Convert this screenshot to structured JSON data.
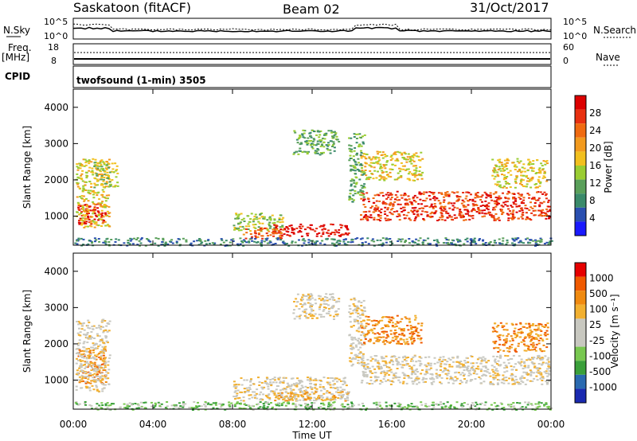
{
  "header": {
    "title": "Saskatoon (fitACF)",
    "beam": "Beam 02",
    "date": "31/Oct/2017"
  },
  "status_panels": {
    "nsky_label": "N.Sky",
    "nsky_ticks": [
      "10^5",
      "10^0"
    ],
    "nsearch_label": "N.Search",
    "nsearch_ticks": [
      "10^5",
      "10^0"
    ],
    "freq_label_1": "Freq.",
    "freq_label_2": "[MHz]",
    "freq_ticks": [
      "18",
      "8"
    ],
    "nave_label": "Nave",
    "nave_ticks": [
      "60",
      "0"
    ],
    "cpid_label": "CPID",
    "cpid_text": "twofsound (1-min) 3505"
  },
  "colors": {
    "power_scale": [
      "#1a1aff",
      "#2a4fb0",
      "#3a8a6a",
      "#5aa05a",
      "#9acd32",
      "#f2c01e",
      "#f29a1e",
      "#f06a10",
      "#e83010",
      "#dc0000"
    ],
    "velocity_scale": [
      "#e60000",
      "#f05a00",
      "#f08a10",
      "#f2b030",
      "#c8c8c0",
      "#c8c8c0",
      "#78c850",
      "#3aa03a",
      "#2a6ab0",
      "#1a2ab0"
    ]
  },
  "chart_data": [
    {
      "type": "heatmap",
      "name": "power",
      "ylabel": "Slant Range [km]",
      "yticks": [
        "1000",
        "2000",
        "3000",
        "4000"
      ],
      "ylim": [
        200,
        4500
      ],
      "xlim": [
        0,
        24
      ],
      "colorbar_label": "Power [dB]",
      "colorbar_ticks": [
        "28",
        "24",
        "20",
        "16",
        "12",
        "8",
        "4"
      ],
      "features": [
        {
          "t0": 0.2,
          "t1": 1.6,
          "r0": 800,
          "r1": 1400,
          "level": 9
        },
        {
          "t0": 0.1,
          "t1": 1.8,
          "r0": 700,
          "r1": 2600,
          "level": 5
        },
        {
          "t0": 1.0,
          "t1": 2.2,
          "r0": 1800,
          "r1": 2500,
          "level": 4
        },
        {
          "t0": 8.0,
          "t1": 10.5,
          "r0": 600,
          "r1": 1100,
          "level": 4
        },
        {
          "t0": 10.0,
          "t1": 13.8,
          "r0": 450,
          "r1": 800,
          "level": 9
        },
        {
          "t0": 8.5,
          "t1": 10.5,
          "r0": 400,
          "r1": 700,
          "level": 7
        },
        {
          "t0": 11.0,
          "t1": 13.3,
          "r0": 2700,
          "r1": 3400,
          "level": 3
        },
        {
          "t0": 14.4,
          "t1": 23.9,
          "r0": 900,
          "r1": 1700,
          "level": 8
        },
        {
          "t0": 14.4,
          "t1": 17.5,
          "r0": 2000,
          "r1": 2800,
          "level": 5
        },
        {
          "t0": 21.0,
          "t1": 23.8,
          "r0": 1800,
          "r1": 2600,
          "level": 5
        },
        {
          "t0": 13.8,
          "t1": 14.6,
          "r0": 1400,
          "r1": 3300,
          "level": 3
        },
        {
          "t0": 0.0,
          "t1": 24.0,
          "r0": 200,
          "r1": 420,
          "level": 2
        }
      ]
    },
    {
      "type": "heatmap",
      "name": "velocity",
      "ylabel": "Slant Range [km]",
      "yticks": [
        "1000",
        "2000",
        "3000",
        "4000"
      ],
      "ylim": [
        200,
        4500
      ],
      "xlim": [
        0,
        24
      ],
      "xlabel": "Time UT",
      "xticks": [
        "00:00",
        "04:00",
        "08:00",
        "12:00",
        "16:00",
        "20:00",
        "00:00"
      ],
      "colorbar_label": "Velocity [m s⁻¹]",
      "colorbar_ticks": [
        "1000",
        "500",
        "100",
        "25",
        "-25",
        "-100",
        "-500",
        "-1000"
      ],
      "features": [
        {
          "t0": 0.2,
          "t1": 1.6,
          "r0": 900,
          "r1": 1900,
          "level": 2
        },
        {
          "t0": 0.1,
          "t1": 1.8,
          "r0": 700,
          "r1": 2700,
          "level": 4
        },
        {
          "t0": 8.0,
          "t1": 13.8,
          "r0": 450,
          "r1": 1100,
          "level": 4
        },
        {
          "t0": 10.0,
          "t1": 13.8,
          "r0": 450,
          "r1": 700,
          "level": 3
        },
        {
          "t0": 11.0,
          "t1": 13.3,
          "r0": 2700,
          "r1": 3400,
          "level": 4
        },
        {
          "t0": 14.4,
          "t1": 23.9,
          "r0": 900,
          "r1": 1700,
          "level": 4
        },
        {
          "t0": 14.4,
          "t1": 17.5,
          "r0": 2000,
          "r1": 2800,
          "level": 2
        },
        {
          "t0": 21.0,
          "t1": 23.8,
          "r0": 1800,
          "r1": 2600,
          "level": 2
        },
        {
          "t0": 13.8,
          "t1": 14.6,
          "r0": 1400,
          "r1": 3300,
          "level": 4
        },
        {
          "t0": 0.0,
          "t1": 24.0,
          "r0": 200,
          "r1": 420,
          "level": 6
        }
      ]
    }
  ]
}
